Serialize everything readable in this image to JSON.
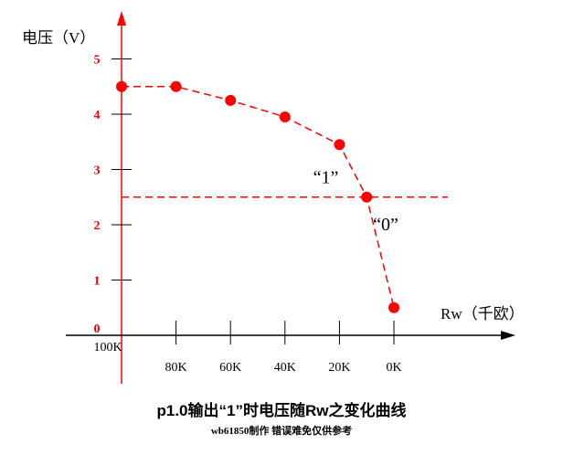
{
  "chart_data": {
    "type": "line",
    "title": "p1.0输出“1”时电压随Rw之变化曲线",
    "credit": "wb61850制作 错误难免仅供参考",
    "ylabel": "电压（V）",
    "xlabel": "Rw（千欧）",
    "x_categories": [
      "100K",
      "80K",
      "60K",
      "40K",
      "20K",
      "0K"
    ],
    "y_ticks": [
      "0",
      "1",
      "2",
      "3",
      "4",
      "5"
    ],
    "ylim": [
      0,
      5.5
    ],
    "series": [
      {
        "x": [
          100,
          80,
          60,
          40,
          20,
          10,
          0
        ],
        "y": [
          4.5,
          4.5,
          4.25,
          3.95,
          3.45,
          2.5,
          0.5
        ]
      }
    ],
    "threshold": {
      "y": 2.5
    },
    "annotations": [
      {
        "text": "“1”",
        "x": 25,
        "y": 2.85
      },
      {
        "text": "“0”",
        "x": 3,
        "y": 2.0
      }
    ],
    "colors": {
      "accent": "#ff0000",
      "axis": "#000000"
    }
  }
}
